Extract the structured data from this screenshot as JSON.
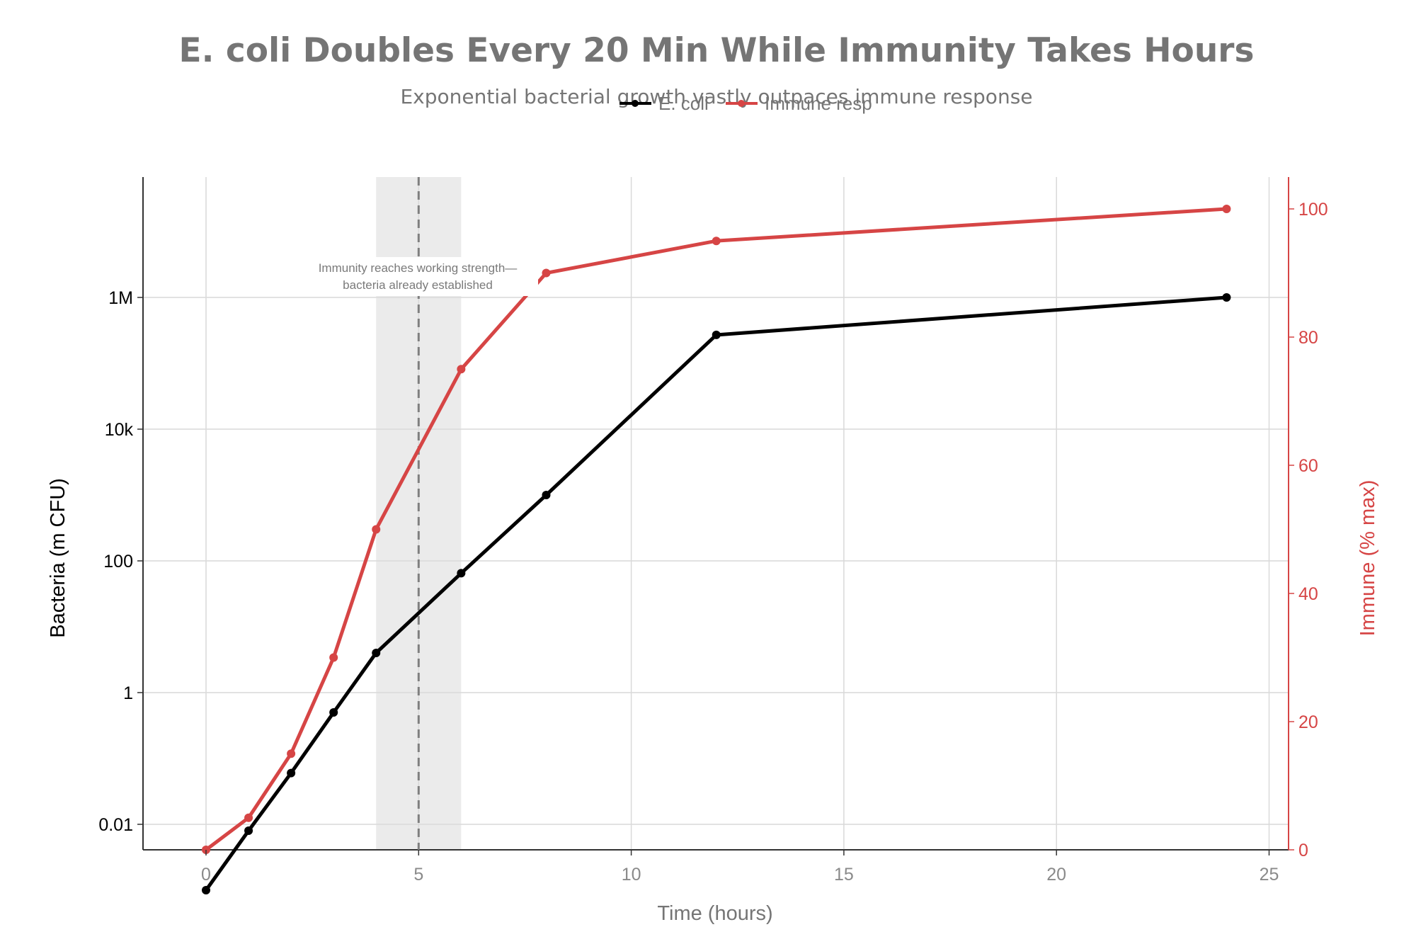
{
  "chart_data": {
    "type": "line",
    "title": "E. coli Doubles Every 20 Min While Immunity Takes Hours",
    "subtitle": "Exponential bacterial growth vastly outpaces immune response",
    "xlabel": "Time (hours)",
    "ylabel_left": "Bacteria (m CFU)",
    "ylabel_right": "Immune (% max)",
    "xlim": [
      -1.5,
      25.5
    ],
    "x_ticks": [
      0,
      5,
      10,
      15,
      20,
      25
    ],
    "x_tick_labels": [
      "0",
      "5",
      "10",
      "15",
      "20",
      "25"
    ],
    "y_left_scale": "log",
    "y_left_ticks": [
      0.01,
      1,
      100,
      10000,
      1000000
    ],
    "y_left_tick_labels": [
      "0.01",
      "1",
      "100",
      "10k",
      "1M"
    ],
    "y_right_ticks": [
      0,
      20,
      40,
      60,
      80,
      100
    ],
    "y_right_tick_labels": [
      "0",
      "20",
      "40",
      "60",
      "80",
      "100"
    ],
    "y_right_lim": [
      0,
      105
    ],
    "grid": true,
    "legend_position": "top-center",
    "series": [
      {
        "name": "E. coli",
        "axis": "left",
        "color": "#000000",
        "x": [
          0,
          1,
          2,
          3,
          4,
          6,
          8,
          12,
          24
        ],
        "values": [
          0.001,
          0.008,
          0.06,
          0.5,
          4,
          65,
          1000,
          270000,
          1000000
        ]
      },
      {
        "name": "Immune resp",
        "axis": "right",
        "color": "#d64545",
        "x": [
          0,
          1,
          2,
          3,
          4,
          6,
          8,
          12,
          24
        ],
        "values": [
          0,
          5,
          15,
          30,
          50,
          75,
          90,
          95,
          100
        ]
      }
    ],
    "shaded_region": {
      "x_start": 4,
      "x_end": 6,
      "color": "#ebebeb"
    },
    "reference_line": {
      "x": 5,
      "style": "dashed",
      "color": "#7f7f7f"
    },
    "annotation": {
      "lines": [
        "Immunity reaches working strength—",
        "bacteria already established"
      ]
    }
  }
}
